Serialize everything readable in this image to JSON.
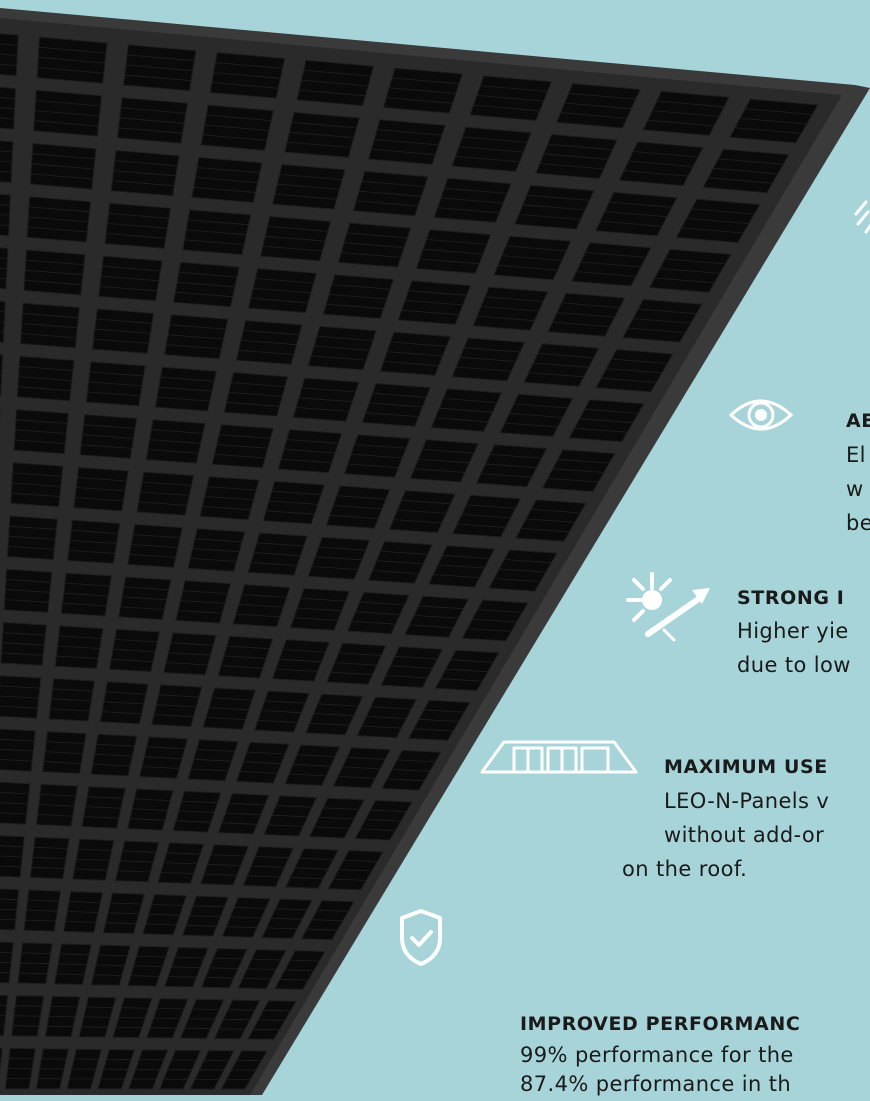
{
  "colors": {
    "background": "#a6d4d9",
    "panel_frame": "#3a3a3a",
    "panel_cells": "#0a0a0a",
    "icon": "#ffffff",
    "text": "#1a1a1a"
  },
  "panel": {
    "cell_columns": 10,
    "cell_rows": 20
  },
  "features": [
    {
      "icon": "light-rays-icon",
      "title": "",
      "text": []
    },
    {
      "icon": "eye-icon",
      "title": "AE",
      "text": [
        "El",
        "w",
        "be"
      ]
    },
    {
      "icon": "sun-irradiance-icon",
      "title": "STRONG I",
      "text": [
        "Higher yie",
        "due to low"
      ]
    },
    {
      "icon": "roof-panels-icon",
      "title": "MAXIMUM USE",
      "text": [
        "LEO-N-Panels v",
        "without add-or",
        "on the roof."
      ]
    },
    {
      "icon": "shield-check-icon",
      "title": "IMPROVED PERFORMANC",
      "text": [
        "99% performance for the",
        "87.4% performance in th"
      ]
    }
  ]
}
